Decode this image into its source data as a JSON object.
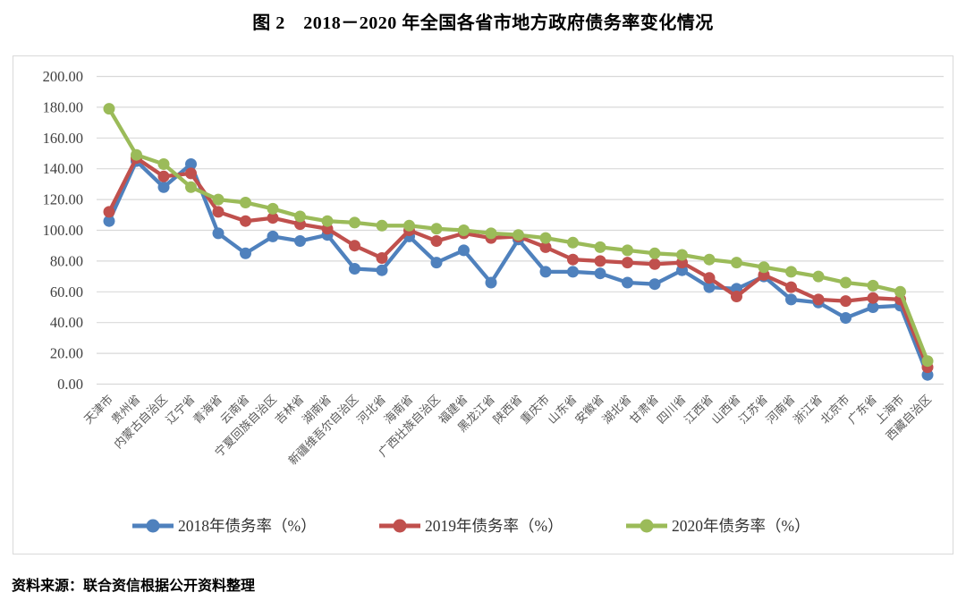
{
  "title": "图 2　2018－2020 年全国各省市地方政府债务率变化情况",
  "source_note": "资料来源：联合资信根据公开资料整理",
  "colors": {
    "grid": "#d9d9d9",
    "border": "#d9d9d9",
    "ytick_text": "#404040",
    "xtick_text": "#595959",
    "legend_text": "#333333",
    "series_2018": "#4F81BD",
    "series_2019": "#C0504D",
    "series_2020": "#9BBB59"
  },
  "chart_data": {
    "type": "line",
    "title": "图 2　2018－2020 年全国各省市地方政府债务率变化情况",
    "xlabel": "",
    "ylabel": "",
    "ylim": [
      0,
      200
    ],
    "ytick_step": 20,
    "ytick_decimals": 2,
    "grid": "horizontal",
    "legend_position": "bottom",
    "marker": "circle",
    "categories": [
      "天津市",
      "贵州省",
      "内蒙古自治区",
      "辽宁省",
      "青海省",
      "云南省",
      "宁夏回族自治区",
      "吉林省",
      "湖南省",
      "新疆维吾尔自治区",
      "河北省",
      "海南省",
      "广西壮族自治区",
      "福建省",
      "黑龙江省",
      "陕西省",
      "重庆市",
      "山东省",
      "安徽省",
      "湖北省",
      "甘肃省",
      "四川省",
      "江西省",
      "山西省",
      "江苏省",
      "河南省",
      "浙江省",
      "北京市",
      "广东省",
      "上海市",
      "西藏自治区"
    ],
    "series": [
      {
        "name": "2018年债务率（%）",
        "color": "#4F81BD",
        "values": [
          106,
          145,
          128,
          143,
          98,
          85,
          96,
          93,
          97,
          75,
          74,
          96,
          79,
          87,
          66,
          94,
          73,
          73,
          72,
          66,
          65,
          74,
          63,
          62,
          70,
          55,
          53,
          43,
          50,
          51,
          6
        ]
      },
      {
        "name": "2019年债务率（%）",
        "color": "#C0504D",
        "values": [
          112,
          147,
          135,
          137,
          112,
          106,
          108,
          104,
          101,
          90,
          82,
          100,
          93,
          98,
          95,
          96,
          89,
          81,
          80,
          79,
          78,
          79,
          69,
          57,
          71,
          63,
          55,
          54,
          56,
          55,
          11
        ]
      },
      {
        "name": "2020年债务率（%）",
        "color": "#9BBB59",
        "values": [
          179,
          149,
          143,
          128,
          120,
          118,
          114,
          109,
          106,
          105,
          103,
          103,
          101,
          100,
          98,
          97,
          95,
          92,
          89,
          87,
          85,
          84,
          81,
          79,
          76,
          73,
          70,
          66,
          64,
          60,
          15
        ]
      }
    ]
  }
}
